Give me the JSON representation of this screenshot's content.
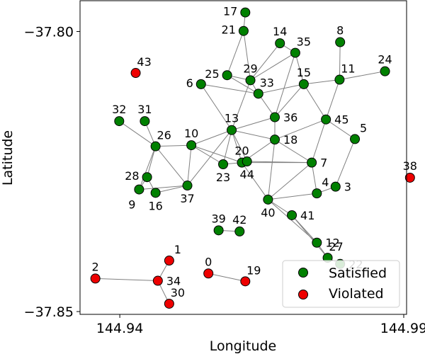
{
  "chart_data": {
    "type": "scatter",
    "title": "",
    "xlabel": "Longitude",
    "ylabel": "Latitude",
    "xlim": [
      144.933,
      144.9905
    ],
    "ylim": [
      -37.8505,
      -37.7945
    ],
    "xticks": [
      144.94,
      144.99
    ],
    "xtick_labels": [
      "144.94",
      "144.99"
    ],
    "yticks": [
      -37.8,
      -37.85
    ],
    "ytick_labels": [
      "−37.80",
      "−37.85"
    ],
    "grid": false,
    "colors": {
      "Satisfied": "#008000",
      "Violated": "#ee0000",
      "edge": "#808080",
      "marker_edge": "#000000"
    },
    "legend": {
      "position": "bottom-right",
      "entries": [
        {
          "label": "Satisfied",
          "series": "Satisfied"
        },
        {
          "label": "Violated",
          "series": "Violated"
        }
      ]
    },
    "series": [
      {
        "name": "Satisfied",
        "points": [
          {
            "id": "3",
            "x": 144.978,
            "y": -37.8277
          },
          {
            "id": "4",
            "x": 144.9747,
            "y": -37.8289
          },
          {
            "id": "5",
            "x": 144.9814,
            "y": -37.8192
          },
          {
            "id": "6",
            "x": 144.9543,
            "y": -37.8094
          },
          {
            "id": "7",
            "x": 144.9738,
            "y": -37.8234
          },
          {
            "id": "8",
            "x": 144.9788,
            "y": -37.8019
          },
          {
            "id": "9",
            "x": 144.9434,
            "y": -37.8282
          },
          {
            "id": "10",
            "x": 144.9526,
            "y": -37.8203
          },
          {
            "id": "11",
            "x": 144.9787,
            "y": -37.8086
          },
          {
            "id": "12",
            "x": 144.9747,
            "y": -37.8377
          },
          {
            "id": "13",
            "x": 144.9597,
            "y": -37.8176
          },
          {
            "id": "14",
            "x": 144.9682,
            "y": -37.8021
          },
          {
            "id": "15",
            "x": 144.9724,
            "y": -37.8094
          },
          {
            "id": "16",
            "x": 144.9463,
            "y": -37.8288
          },
          {
            "id": "17",
            "x": 144.9621,
            "y": -37.7966
          },
          {
            "id": "18",
            "x": 144.9673,
            "y": -37.8193
          },
          {
            "id": "20",
            "x": 144.9615,
            "y": -37.8234
          },
          {
            "id": "21",
            "x": 144.9618,
            "y": -37.7999
          },
          {
            "id": "22",
            "x": 144.9788,
            "y": -37.8415
          },
          {
            "id": "23",
            "x": 144.9582,
            "y": -37.8237
          },
          {
            "id": "24",
            "x": 144.9867,
            "y": -37.8071
          },
          {
            "id": "25",
            "x": 144.9589,
            "y": -37.8078
          },
          {
            "id": "26",
            "x": 144.9463,
            "y": -37.8205
          },
          {
            "id": "27",
            "x": 144.9766,
            "y": -37.8404
          },
          {
            "id": "28",
            "x": 144.9448,
            "y": -37.826
          },
          {
            "id": "29",
            "x": 144.963,
            "y": -37.8087
          },
          {
            "id": "31",
            "x": 144.9444,
            "y": -37.816
          },
          {
            "id": "32",
            "x": 144.9399,
            "y": -37.816
          },
          {
            "id": "33",
            "x": 144.9644,
            "y": -37.8111
          },
          {
            "id": "35",
            "x": 144.9709,
            "y": -37.8038
          },
          {
            "id": "36",
            "x": 144.9673,
            "y": -37.8153
          },
          {
            "id": "37",
            "x": 144.9519,
            "y": -37.8275
          },
          {
            "id": "39",
            "x": 144.9574,
            "y": -37.8355
          },
          {
            "id": "40",
            "x": 144.9661,
            "y": -37.83
          },
          {
            "id": "41",
            "x": 144.9703,
            "y": -37.8328
          },
          {
            "id": "42",
            "x": 144.9611,
            "y": -37.8357
          },
          {
            "id": "44",
            "x": 144.9624,
            "y": -37.8232
          },
          {
            "id": "45",
            "x": 144.9763,
            "y": -37.8157
          }
        ]
      },
      {
        "name": "Violated",
        "points": [
          {
            "id": "0",
            "x": 144.9556,
            "y": -37.8432
          },
          {
            "id": "1",
            "x": 144.9487,
            "y": -37.8409
          },
          {
            "id": "2",
            "x": 144.9357,
            "y": -37.8441
          },
          {
            "id": "19",
            "x": 144.9621,
            "y": -37.8446
          },
          {
            "id": "30",
            "x": 144.9487,
            "y": -37.8486
          },
          {
            "id": "34",
            "x": 144.9467,
            "y": -37.8445
          },
          {
            "id": "38",
            "x": 144.9911,
            "y": -37.8261
          },
          {
            "id": "43",
            "x": 144.9428,
            "y": -37.8074
          }
        ]
      }
    ],
    "edges": [
      [
        "17",
        "21"
      ],
      [
        "21",
        "25"
      ],
      [
        "21",
        "29"
      ],
      [
        "14",
        "29"
      ],
      [
        "14",
        "35"
      ],
      [
        "35",
        "29"
      ],
      [
        "35",
        "15"
      ],
      [
        "35",
        "36"
      ],
      [
        "25",
        "29"
      ],
      [
        "25",
        "33"
      ],
      [
        "29",
        "33"
      ],
      [
        "6",
        "33"
      ],
      [
        "33",
        "36"
      ],
      [
        "33",
        "15"
      ],
      [
        "36",
        "18"
      ],
      [
        "36",
        "15"
      ],
      [
        "15",
        "11"
      ],
      [
        "15",
        "45"
      ],
      [
        "11",
        "8"
      ],
      [
        "11",
        "24"
      ],
      [
        "11",
        "45"
      ],
      [
        "45",
        "5"
      ],
      [
        "45",
        "18"
      ],
      [
        "45",
        "7"
      ],
      [
        "5",
        "3"
      ],
      [
        "3",
        "4"
      ],
      [
        "6",
        "13"
      ],
      [
        "13",
        "29"
      ],
      [
        "13",
        "18"
      ],
      [
        "13",
        "36"
      ],
      [
        "13",
        "10"
      ],
      [
        "13",
        "23"
      ],
      [
        "13",
        "20"
      ],
      [
        "13",
        "44"
      ],
      [
        "18",
        "20"
      ],
      [
        "18",
        "7"
      ],
      [
        "18",
        "40"
      ],
      [
        "7",
        "20"
      ],
      [
        "7",
        "44"
      ],
      [
        "7",
        "4"
      ],
      [
        "7",
        "40"
      ],
      [
        "4",
        "40"
      ],
      [
        "40",
        "20"
      ],
      [
        "40",
        "41"
      ],
      [
        "41",
        "12"
      ],
      [
        "41",
        "27"
      ],
      [
        "40",
        "12"
      ],
      [
        "12",
        "27"
      ],
      [
        "27",
        "22"
      ],
      [
        "10",
        "26"
      ],
      [
        "10",
        "37"
      ],
      [
        "10",
        "23"
      ],
      [
        "10",
        "20"
      ],
      [
        "26",
        "31"
      ],
      [
        "26",
        "32"
      ],
      [
        "26",
        "28"
      ],
      [
        "26",
        "37"
      ],
      [
        "26",
        "9"
      ],
      [
        "28",
        "9"
      ],
      [
        "28",
        "16"
      ],
      [
        "16",
        "37"
      ],
      [
        "9",
        "37"
      ],
      [
        "37",
        "13"
      ],
      [
        "23",
        "20"
      ],
      [
        "20",
        "44"
      ],
      [
        "39",
        "42"
      ],
      [
        "0",
        "19"
      ],
      [
        "1",
        "34"
      ],
      [
        "34",
        "2"
      ],
      [
        "34",
        "30"
      ]
    ],
    "label_offsets": {
      "17": "left",
      "21": "left",
      "14": "above",
      "35": "above-right",
      "8": "above",
      "24": "above",
      "25": "left",
      "29": "above",
      "33": "above-right",
      "6": "left",
      "15": "above",
      "11": "above-right",
      "36": "right",
      "13": "above",
      "45": "right",
      "5": "above-right",
      "18": "right",
      "10": "above",
      "32": "above",
      "31": "above",
      "26": "above-right",
      "20": "above",
      "7": "right",
      "28": "left",
      "9": "below-left",
      "16": "below",
      "37": "below",
      "23": "below",
      "44": "below",
      "4": "above-right",
      "3": "right",
      "38": "above",
      "40": "below",
      "41": "right",
      "39": "above",
      "42": "above",
      "12": "right",
      "27": "above-right",
      "22": "right",
      "43": "above-right",
      "1": "above-right",
      "2": "above",
      "34": "right",
      "0": "above",
      "19": "above-right",
      "30": "above-right"
    }
  }
}
